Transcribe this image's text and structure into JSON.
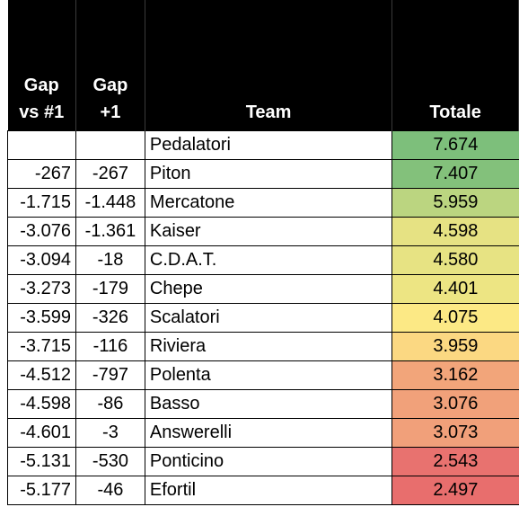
{
  "headers": {
    "gap_vs_first_line1": "Gap",
    "gap_vs_first_line2": "vs #1",
    "gap_plus_one_line1": "Gap",
    "gap_plus_one_line2": "+1",
    "team": "Team",
    "totale": "Totale"
  },
  "rows": [
    {
      "gap1": "",
      "gap2": "",
      "team": "Pedalatori",
      "totale": "7.674",
      "color": "#7dbf7b"
    },
    {
      "gap1": "-267",
      "gap2": "-267",
      "team": "Piton",
      "totale": "7.407",
      "color": "#83c17b"
    },
    {
      "gap1": "-1.715",
      "gap2": "-1.448",
      "team": "Mercatone",
      "totale": "5.959",
      "color": "#bbd580"
    },
    {
      "gap1": "-3.076",
      "gap2": "-1.361",
      "team": "Kaiser",
      "totale": "4.598",
      "color": "#e6e283"
    },
    {
      "gap1": "-3.094",
      "gap2": "-18",
      "team": "C.D.A.T.",
      "totale": "4.580",
      "color": "#e7e383"
    },
    {
      "gap1": "-3.273",
      "gap2": "-179",
      "team": "Chepe",
      "totale": "4.401",
      "color": "#ede583"
    },
    {
      "gap1": "-3.599",
      "gap2": "-326",
      "team": "Scalatori",
      "totale": "4.075",
      "color": "#fce985"
    },
    {
      "gap1": "-3.715",
      "gap2": "-116",
      "team": "Riviera",
      "totale": "3.959",
      "color": "#fbd882"
    },
    {
      "gap1": "-4.512",
      "gap2": "-797",
      "team": "Polenta",
      "totale": "3.162",
      "color": "#f2a57a"
    },
    {
      "gap1": "-4.598",
      "gap2": "-86",
      "team": "Basso",
      "totale": "3.076",
      "color": "#f1a17a"
    },
    {
      "gap1": "-4.601",
      "gap2": "-3",
      "team": "Answerelli",
      "totale": "3.073",
      "color": "#f1a07a"
    },
    {
      "gap1": "-5.131",
      "gap2": "-530",
      "team": "Ponticino",
      "totale": "2.543",
      "color": "#e8726f"
    },
    {
      "gap1": "-5.177",
      "gap2": "-46",
      "team": "Efortil",
      "totale": "2.497",
      "color": "#e86e6d"
    }
  ]
}
